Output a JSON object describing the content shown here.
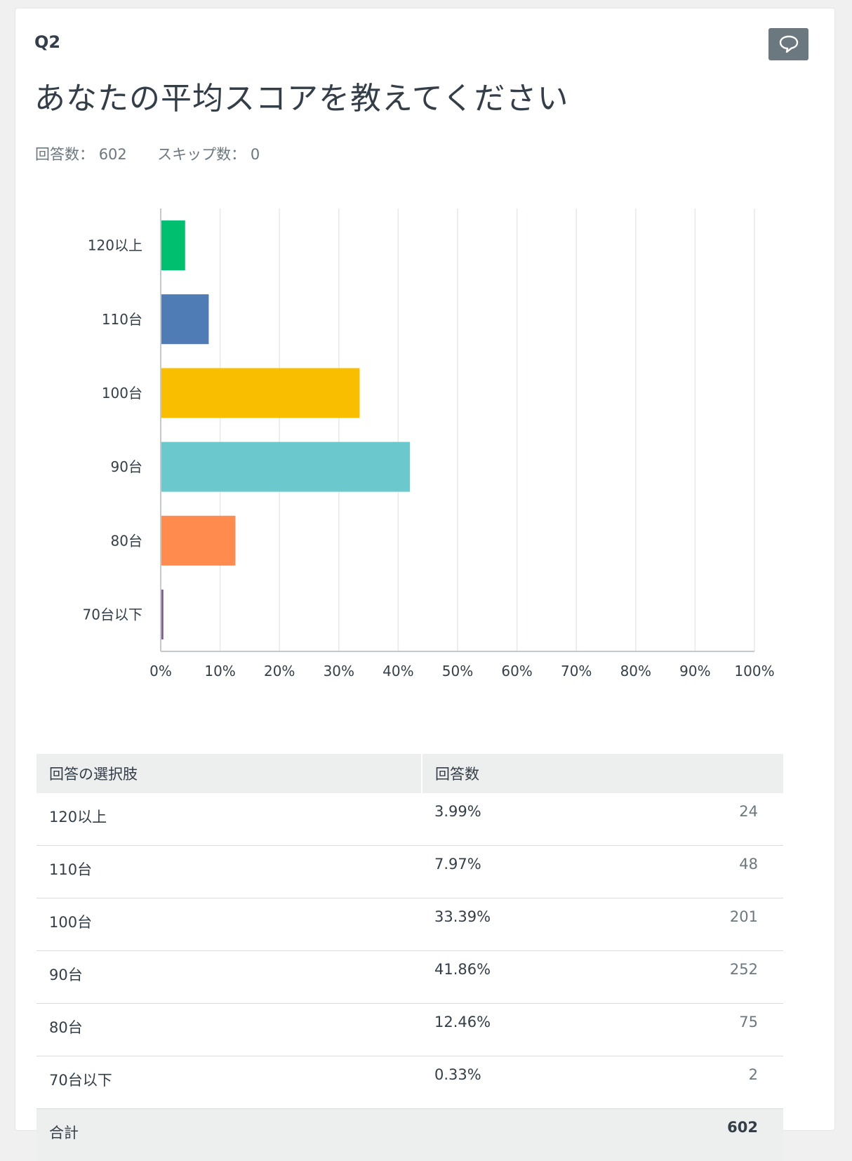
{
  "question": {
    "number": "Q2",
    "title": "あなたの平均スコアを教えてください",
    "answered_label": "回答数：",
    "answered_value": "602",
    "skipped_label": "スキップ数：",
    "skipped_value": "0"
  },
  "comment_icon": "speech-bubble-icon",
  "chart_data": {
    "type": "bar",
    "orientation": "horizontal",
    "categories": [
      "120以上",
      "110台",
      "100台",
      "90台",
      "80台",
      "70台以下"
    ],
    "values": [
      3.99,
      7.97,
      33.39,
      41.86,
      12.46,
      0.33
    ],
    "colors": [
      "#00bf6f",
      "#507cb6",
      "#f9be00",
      "#6bc8cd",
      "#ff8b4f",
      "#7d5e90"
    ],
    "xlim": [
      0,
      100
    ],
    "xticks": [
      "0%",
      "10%",
      "20%",
      "30%",
      "40%",
      "50%",
      "60%",
      "70%",
      "80%",
      "90%",
      "100%"
    ],
    "grid": true
  },
  "table": {
    "header_choice": "回答の選択肢",
    "header_count": "回答数",
    "rows": [
      {
        "label": "120以上",
        "percent": "3.99%",
        "count": "24"
      },
      {
        "label": "110台",
        "percent": "7.97%",
        "count": "48"
      },
      {
        "label": "100台",
        "percent": "33.39%",
        "count": "201"
      },
      {
        "label": "90台",
        "percent": "41.86%",
        "count": "252"
      },
      {
        "label": "80台",
        "percent": "12.46%",
        "count": "75"
      },
      {
        "label": "70台以下",
        "percent": "0.33%",
        "count": "2"
      }
    ],
    "total_label": "合計",
    "total_value": "602"
  }
}
